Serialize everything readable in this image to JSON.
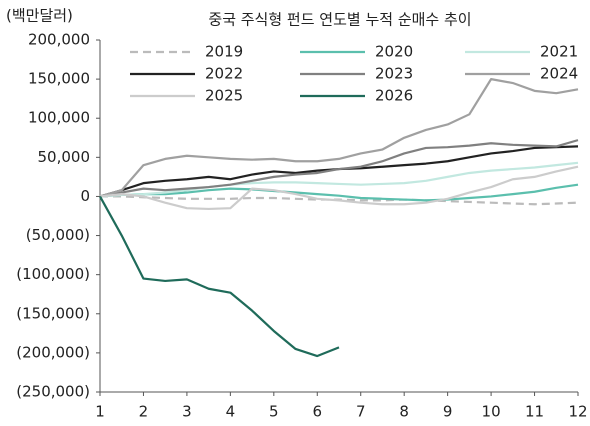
{
  "chart_data": {
    "type": "line",
    "title": "중국 주식형 펀드 연도별 누적 순매수 추이",
    "y_label": "(백만달러)",
    "x": [
      1,
      1.5,
      2,
      2.5,
      3,
      3.5,
      4,
      4.5,
      5,
      5.5,
      6,
      6.5,
      7,
      7.5,
      8,
      8.5,
      9,
      9.5,
      10,
      10.5,
      11,
      11.5,
      12
    ],
    "xlim": [
      1,
      12
    ],
    "xticks": [
      1,
      2,
      3,
      4,
      5,
      6,
      7,
      8,
      9,
      10,
      11,
      12
    ],
    "ylim": [
      -250000,
      200000
    ],
    "yticks": [
      {
        "value": -250000,
        "label": "(250,000)"
      },
      {
        "value": -200000,
        "label": "(200,000)"
      },
      {
        "value": -150000,
        "label": "(150,000)"
      },
      {
        "value": -100000,
        "label": "(100,000)"
      },
      {
        "value": -50000,
        "label": "(50,000)"
      },
      0,
      {
        "value": 50000,
        "label": "50,000"
      },
      {
        "value": 100000,
        "label": "100,000"
      },
      {
        "value": 150000,
        "label": "150,000"
      },
      {
        "value": 200000,
        "label": "200,000"
      }
    ],
    "grid": false,
    "series": [
      {
        "name": "2019",
        "color": "#bbbbbb",
        "dashed": true,
        "values": [
          0,
          0,
          -1000,
          -2000,
          -3000,
          -3000,
          -3000,
          -2000,
          -2000,
          -3000,
          -4000,
          -4000,
          -5000,
          -5000,
          -4000,
          -5000,
          -6000,
          -7000,
          -8000,
          -9000,
          -10000,
          -9000,
          -8000
        ]
      },
      {
        "name": "2020",
        "color": "#5bbfad",
        "values": [
          0,
          2000,
          3000,
          3000,
          5000,
          8000,
          10000,
          9000,
          7000,
          5000,
          3000,
          1000,
          -2000,
          -3000,
          -4000,
          -5000,
          -4000,
          -2000,
          0,
          3000,
          6000,
          11000,
          15000
        ]
      },
      {
        "name": "2021",
        "color": "#c2e8e0",
        "values": [
          0,
          2000,
          3000,
          5000,
          8000,
          12000,
          15000,
          17000,
          18000,
          18000,
          17000,
          16000,
          15000,
          16000,
          17000,
          20000,
          25000,
          30000,
          33000,
          35000,
          37000,
          40000,
          43000
        ]
      },
      {
        "name": "2022",
        "color": "#222222",
        "values": [
          0,
          8000,
          17000,
          20000,
          22000,
          25000,
          22000,
          28000,
          32000,
          30000,
          33000,
          35000,
          36000,
          38000,
          40000,
          42000,
          45000,
          50000,
          55000,
          58000,
          62000,
          63000,
          64000
        ]
      },
      {
        "name": "2023",
        "color": "#808080",
        "values": [
          0,
          5000,
          10000,
          8000,
          10000,
          12000,
          15000,
          20000,
          25000,
          28000,
          30000,
          35000,
          38000,
          45000,
          55000,
          62000,
          63000,
          65000,
          68000,
          66000,
          65000,
          64000,
          72000
        ]
      },
      {
        "name": "2024",
        "color": "#a0a0a0",
        "values": [
          0,
          8000,
          40000,
          48000,
          52000,
          50000,
          48000,
          47000,
          48000,
          45000,
          45000,
          48000,
          55000,
          60000,
          75000,
          85000,
          92000,
          105000,
          150000,
          145000,
          135000,
          132000,
          137000
        ]
      },
      {
        "name": "2025",
        "color": "#cccccc",
        "values": [
          0,
          3000,
          0,
          -8000,
          -15000,
          -16000,
          -15000,
          10000,
          8000,
          3000,
          -3000,
          -5000,
          -8000,
          -10000,
          -10000,
          -8000,
          -3000,
          5000,
          12000,
          22000,
          25000,
          32000,
          38000
        ]
      },
      {
        "name": "2026",
        "color": "#1f6b5a",
        "values": [
          0,
          -50000,
          -105000,
          -108000,
          -106000,
          -118000,
          -123000,
          -146000,
          -172000,
          -195000,
          -204000,
          -193000,
          null,
          null,
          null,
          null,
          null,
          null,
          null,
          null,
          null,
          null,
          null
        ]
      }
    ]
  }
}
